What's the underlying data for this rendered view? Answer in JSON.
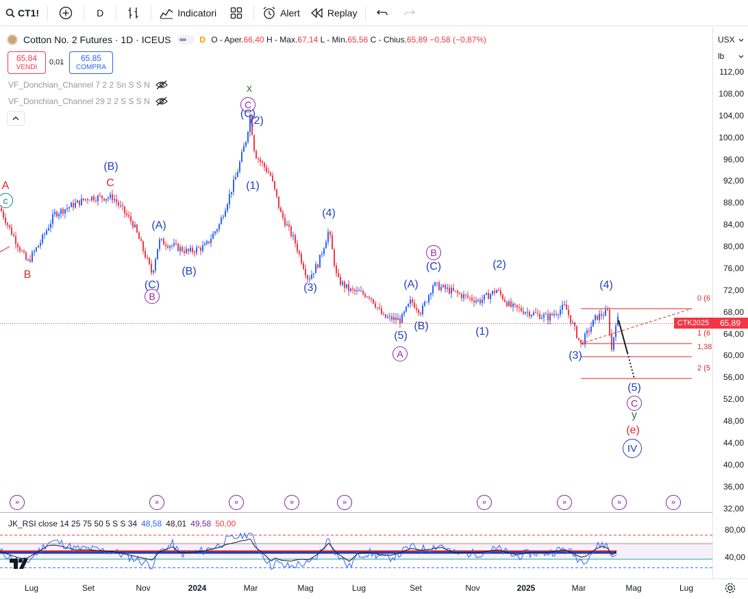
{
  "toolbar": {
    "symbol": "CT1!",
    "timeframe": "D",
    "indicators_label": "Indicatori",
    "alert_label": "Alert",
    "replay_label": "Replay"
  },
  "legend": {
    "title": "Cotton No. 2 Futures · 1D · ICEUS",
    "o_label": "O - Aper.",
    "o": "66,40",
    "h_label": "H - Max.",
    "h": "67,14",
    "l_label": "L - Min.",
    "l": "65,56",
    "c_label": "C - Chius.",
    "c": "65,89",
    "change": "−0,58 (−0,87%)"
  },
  "trade": {
    "sell_price": "65,84",
    "sell_label": "VENDI",
    "spread": "0,01",
    "buy_price": "65,85",
    "buy_label": "COMPRA"
  },
  "indicators": [
    "VF_Donchian_Channel 7 2 2 Sn S S N",
    "VF_Donchian_Channel 29 2 2 S S S N"
  ],
  "price_axis": {
    "currency": "USX",
    "unit": "lb",
    "labels": [
      "112,00",
      "108,00",
      "104,00",
      "100,00",
      "96,00",
      "92,00",
      "88,00",
      "84,00",
      "80,00",
      "76,00",
      "72,00",
      "68,00",
      "64,00",
      "60,00",
      "56,00",
      "52,00",
      "48,00",
      "44,00",
      "40,00",
      "36,00",
      "32,00"
    ],
    "current_price": "65,89",
    "ctk_label": "CTK2025"
  },
  "fib_labels": [
    "0 (6",
    "1 (6",
    "1,38",
    "2 (5"
  ],
  "rsi": {
    "title": "JK_RSI close 14 25 75 50 5 S S 34",
    "v1": "48,58",
    "v2": "48,01",
    "v3": "49,58",
    "v4": "50,00",
    "axis": [
      "80,00",
      "40,00"
    ]
  },
  "time_axis": [
    "Lug",
    "Set",
    "Nov",
    "2024",
    "Mar",
    "Mag",
    "Lug",
    "Set",
    "Nov",
    "2025",
    "Mar",
    "Mag",
    "Lug"
  ],
  "waves": {
    "A_red": "A",
    "c_teal": "c",
    "B_red": "B",
    "B_blue_paren": "(B)",
    "C_red": "C",
    "C_blue_paren1": "(C)",
    "B_purple": "B",
    "A_blue_paren1": "(A)",
    "B_blue_paren2": "(B)",
    "x_green": "x",
    "C_purple1": "C",
    "C_blue_paren2": "(C)",
    "w2_1": "(2)",
    "w1_1": "(1)",
    "w3_1": "(3)",
    "w4_1": "(4)",
    "w5_1": "(5)",
    "A_purple": "A",
    "A_blue_paren2": "(A)",
    "B_blue_paren3": "(B)",
    "B_purple2": "B",
    "C_blue_paren3": "(C)",
    "w2_2": "(2)",
    "w1_2": "(1)",
    "w4_2": "(4)",
    "w3_2": "(3)",
    "w5_2": "(5)",
    "C_purple2": "C",
    "y_green": "y",
    "e_red": "(e)",
    "IV_blue": "IV"
  },
  "colors": {
    "up": "#2962ff",
    "down": "#f23645",
    "wave_blue": "#1e3fbf",
    "wave_red": "#e02424",
    "wave_purple": "#8e24aa",
    "wave_green": "#2e7d32"
  }
}
